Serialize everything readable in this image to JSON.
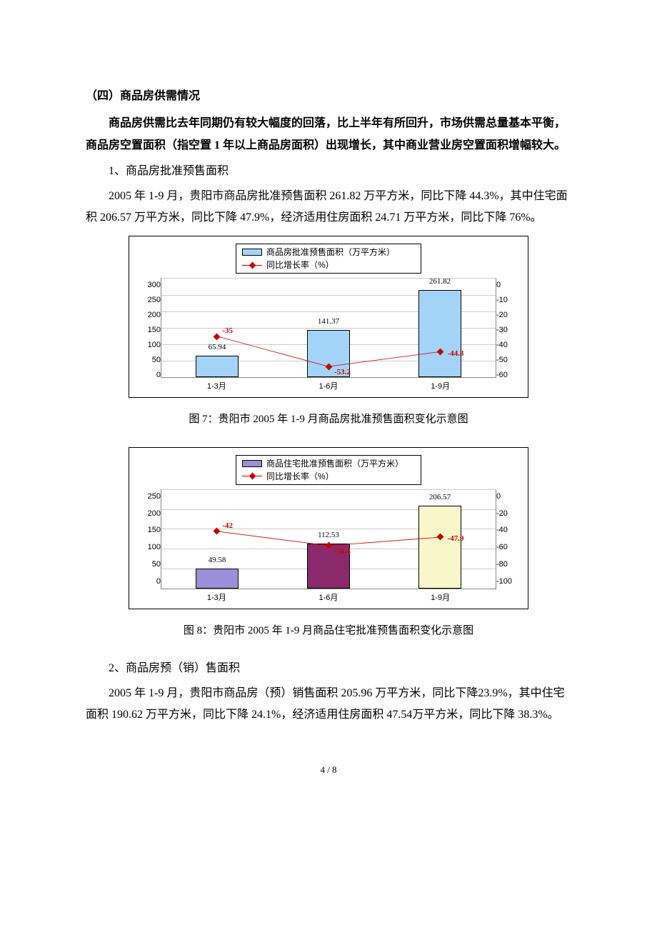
{
  "heading": "（四）商品房供需情况",
  "intro": "商品房供需比去年同期仍有较大幅度的回落，比上半年有所回升，市场供需总量基本平衡，商品房空置面积（指空置 1 年以上商品房面积）出现增长，其中商业营业房空置面积增幅较大。",
  "sub1_title": "1、商品房批准预售面积",
  "sub1_body": "2005 年 1-9 月，贵阳市商品房批准预售面积 261.82 万平方米，同比下降 44.3%，其中住宅面积 206.57 万平方米，同比下降 47.9%，经济适用住房面积 24.71 万平方米，同比下降 76%。",
  "chart7": {
    "legend_bar": "商品房批准预售面积（万平方米）",
    "legend_line": "同比增长率（%）",
    "bar_color": "#a3d4f7",
    "categories": [
      "1-3月",
      "1-6月",
      "1-9月"
    ],
    "bar_values": [
      65.94,
      141.37,
      261.82
    ],
    "y_left": [
      "300",
      "250",
      "200",
      "150",
      "100",
      "50",
      "0"
    ],
    "y_left_max": 300,
    "line_values": [
      -35,
      -53.2,
      -44.3
    ],
    "y_right": [
      "0",
      "-10",
      "-20",
      "-30",
      "-40",
      "-50",
      "-60"
    ],
    "y_right_min": -60,
    "y_right_max": 0
  },
  "caption7": "图 7：贵阳市 2005 年 1-9 月商品房批准预售面积变化示意图",
  "chart8": {
    "legend_bar": "商品住宅批准预售面积（万平方米）",
    "legend_line": "同比增长率（%）",
    "bar_colors": [
      "#9a8fd8",
      "#8a2a6b",
      "#f9f7c9"
    ],
    "categories": [
      "1-3月",
      "1-6月",
      "1-9月"
    ],
    "bar_values": [
      49.58,
      112.53,
      206.57
    ],
    "y_left": [
      "250",
      "200",
      "150",
      "100",
      "50",
      "0"
    ],
    "y_left_max": 250,
    "line_values": [
      -42,
      -56.4,
      -47.9
    ],
    "y_right": [
      "0",
      "-20",
      "-40",
      "-60",
      "-80",
      "-100"
    ],
    "y_right_min": -100,
    "y_right_max": 0
  },
  "caption8": "图 8：贵阳市 2005 年 1-9 月商品住宅批准预售面积变化示意图",
  "sub2_title": "2、商品房预（销）售面积",
  "sub2_body": "2005 年 1-9 月，贵阳市商品房（预）销售面积 205.96 万平方米，同比下降23.9%，其中住宅面积 190.62 万平方米，同比下降 24.1%，经济适用住房面积 47.54万平方米，同比下降 38.3%。",
  "page": "4 / 8"
}
